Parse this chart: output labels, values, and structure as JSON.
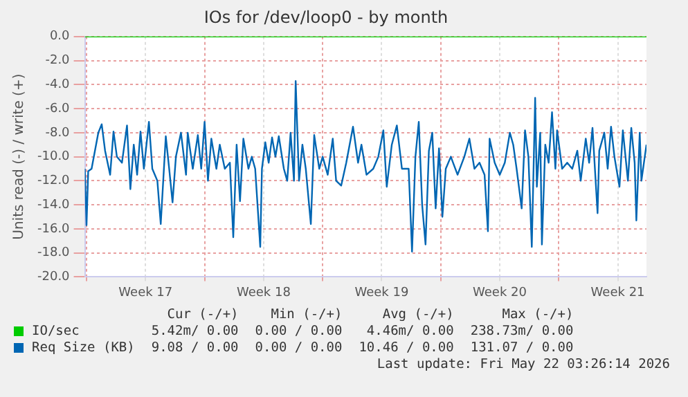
{
  "chart_data": {
    "type": "line",
    "title": "IOs for /dev/loop0 - by month",
    "ylabel": "Units read (-) / write (+)",
    "xlim": [
      "2026-04-19T21:36",
      "2026-05-23T04:48"
    ],
    "xticks": [
      {
        "value": "2026-04-20",
        "label": null
      },
      {
        "value": "2026-04-23T12:00",
        "label": "Week 17"
      },
      {
        "value": "2026-04-27",
        "label": null
      },
      {
        "value": "2026-04-30T12:00",
        "label": "Week 18"
      },
      {
        "value": "2026-05-04",
        "label": null
      },
      {
        "value": "2026-05-07T12:00",
        "label": "Week 19"
      },
      {
        "value": "2026-05-11",
        "label": null
      },
      {
        "value": "2026-05-14T12:00",
        "label": "Week 20"
      },
      {
        "value": "2026-05-18",
        "label": null
      },
      {
        "value": "2026-05-21T12:00",
        "label": "Week 21"
      }
    ],
    "ylim": [
      -20,
      0
    ],
    "yticks": [
      {
        "value": -20,
        "label": "-20.0"
      },
      {
        "value": -18,
        "label": "-18.0"
      },
      {
        "value": -16,
        "label": "-16.0"
      },
      {
        "value": -14,
        "label": "-14.0"
      },
      {
        "value": -12,
        "label": "-12.0"
      },
      {
        "value": -10,
        "label": "-10.0"
      },
      {
        "value": -8,
        "label": "-8.0"
      },
      {
        "value": -6,
        "label": "-6.0"
      },
      {
        "value": -4,
        "label": "-4.0"
      },
      {
        "value": -2,
        "label": "-2.0"
      },
      {
        "value": 0,
        "label": "0.0"
      }
    ],
    "grid": true,
    "legend": "bottom",
    "marker": "none",
    "line_style": "solid",
    "series": [
      {
        "name": "IO/sec",
        "color": "#00cc00",
        "x": [
          "2026-04-19T21:36",
          "2026-05-23T04:48"
        ],
        "values": [
          0,
          0
        ]
      },
      {
        "name": "Req Size (KB)",
        "color": "#0066b3",
        "x": [
          "2026-04-19T21:36",
          "2026-04-20T00:00",
          "2026-04-20T02:24",
          "2026-04-20T07:12",
          "2026-04-20T16:48",
          "2026-04-20T21:36",
          "2026-04-21T02:24",
          "2026-04-21T09:36",
          "2026-04-21T14:24",
          "2026-04-21T19:12",
          "2026-04-22T02:24",
          "2026-04-22T09:36",
          "2026-04-22T14:24",
          "2026-04-22T19:12",
          "2026-04-23T00:00",
          "2026-04-23T04:48",
          "2026-04-23T09:36",
          "2026-04-23T16:48",
          "2026-04-23T21:36",
          "2026-04-24T04:48",
          "2026-04-24T09:36",
          "2026-04-24T16:48",
          "2026-04-24T21:36",
          "2026-04-25T02:24",
          "2026-04-25T07:12",
          "2026-04-25T14:24",
          "2026-04-25T21:36",
          "2026-04-26T00:00",
          "2026-04-26T07:12",
          "2026-04-26T14:24",
          "2026-04-26T19:12",
          "2026-04-27T00:00",
          "2026-04-27T04:48",
          "2026-04-27T09:36",
          "2026-04-27T16:48",
          "2026-04-27T21:36",
          "2026-04-28T04:48",
          "2026-04-28T12:00",
          "2026-04-28T16:48",
          "2026-04-28T21:36",
          "2026-04-29T02:24",
          "2026-04-29T07:12",
          "2026-04-29T14:24",
          "2026-04-29T19:12",
          "2026-04-30T00:00",
          "2026-04-30T07:12",
          "2026-04-30T09:36",
          "2026-04-30T14:24",
          "2026-04-30T19:12",
          "2026-05-01T00:00",
          "2026-05-01T04:48",
          "2026-05-01T09:36",
          "2026-05-01T16:48",
          "2026-05-01T21:36",
          "2026-05-02T02:24",
          "2026-05-02T07:12",
          "2026-05-02T09:36",
          "2026-05-02T14:24",
          "2026-05-02T19:12",
          "2026-05-03T00:00",
          "2026-05-03T07:12",
          "2026-05-03T12:00",
          "2026-05-03T19:12",
          "2026-05-04T00:00",
          "2026-05-04T07:12",
          "2026-05-04T14:24",
          "2026-05-04T19:12",
          "2026-05-05T02:24",
          "2026-05-05T09:36",
          "2026-05-05T19:12",
          "2026-05-06T02:24",
          "2026-05-06T07:12",
          "2026-05-06T14:24",
          "2026-05-07T00:00",
          "2026-05-07T07:12",
          "2026-05-07T14:24",
          "2026-05-07T19:12",
          "2026-05-08T02:24",
          "2026-05-08T09:36",
          "2026-05-08T16:48",
          "2026-05-09T02:24",
          "2026-05-09T07:12",
          "2026-05-09T12:00",
          "2026-05-09T16:48",
          "2026-05-09T21:36",
          "2026-05-10T02:24",
          "2026-05-10T07:12",
          "2026-05-10T12:00",
          "2026-05-10T16:48",
          "2026-05-10T21:36",
          "2026-05-11T02:24",
          "2026-05-11T07:12",
          "2026-05-11T14:24",
          "2026-05-12T00:00",
          "2026-05-12T09:36",
          "2026-05-12T16:48",
          "2026-05-13T00:00",
          "2026-05-13T07:12",
          "2026-05-13T14:24",
          "2026-05-13T19:12",
          "2026-05-13T21:36",
          "2026-05-14T04:48",
          "2026-05-14T12:00",
          "2026-05-14T19:12",
          "2026-05-15T02:24",
          "2026-05-15T07:12",
          "2026-05-15T12:00",
          "2026-05-15T19:12",
          "2026-05-16T00:00",
          "2026-05-16T04:48",
          "2026-05-16T09:36",
          "2026-05-16T14:24",
          "2026-05-16T16:48",
          "2026-05-16T21:36",
          "2026-05-17T00:00",
          "2026-05-17T04:48",
          "2026-05-17T09:36",
          "2026-05-17T14:24",
          "2026-05-17T19:12",
          "2026-05-17T21:36",
          "2026-05-18T04:48",
          "2026-05-18T12:00",
          "2026-05-18T19:12",
          "2026-05-19T02:24",
          "2026-05-19T07:12",
          "2026-05-19T14:24",
          "2026-05-19T19:12",
          "2026-05-20T00:00",
          "2026-05-20T07:12",
          "2026-05-20T09:36",
          "2026-05-20T16:48",
          "2026-05-20T21:36",
          "2026-05-21T02:24",
          "2026-05-21T07:12",
          "2026-05-21T14:24",
          "2026-05-21T19:12",
          "2026-05-22T02:24",
          "2026-05-22T07:12",
          "2026-05-22T12:00",
          "2026-05-22T14:24",
          "2026-05-22T19:12",
          "2026-05-22T21:36",
          "2026-05-23T04:48"
        ],
        "values": [
          -11,
          -15.7,
          -11.2,
          -11,
          -8,
          -7.3,
          -9.5,
          -11.5,
          -7.9,
          -10,
          -10.5,
          -7.4,
          -12.7,
          -9,
          -11.5,
          -7.9,
          -11,
          -7.1,
          -11,
          -12,
          -15.6,
          -8.3,
          -11,
          -13.8,
          -10,
          -8,
          -11.5,
          -8,
          -11,
          -8.2,
          -11,
          -7.1,
          -12,
          -8.5,
          -11,
          -9,
          -11,
          -10.5,
          -16.7,
          -9,
          -13.7,
          -8.5,
          -11,
          -10,
          -11,
          -17.5,
          -11,
          -8.8,
          -10.5,
          -8.4,
          -10,
          -8.3,
          -11,
          -12,
          -8,
          -12,
          -3.7,
          -12,
          -9,
          -11,
          -15.6,
          -8.2,
          -11,
          -10,
          -11.5,
          -8.5,
          -12,
          -12.4,
          -10.5,
          -7.5,
          -10.5,
          -9,
          -11.5,
          -11,
          -10,
          -7.8,
          -12.5,
          -9,
          -7.4,
          -11,
          -11,
          -17.9,
          -10,
          -7.1,
          -14,
          -17.3,
          -9.5,
          -8,
          -14.3,
          -9.3,
          -15,
          -11,
          -10,
          -11.5,
          -10,
          -8.5,
          -11,
          -10.5,
          -11.5,
          -16.2,
          -8.5,
          -10.5,
          -11.5,
          -10.5,
          -8,
          -9,
          -11,
          -14.3,
          -7.8,
          -10,
          -17.5,
          -5.1,
          -12.5,
          -8,
          -17.3,
          -9,
          -10.5,
          -6.3,
          -11,
          -7.8,
          -11,
          -10.5,
          -11,
          -9.5,
          -12,
          -8.5,
          -10.5,
          -7.6,
          -14.7,
          -9.5,
          -8,
          -11,
          -7.5,
          -10,
          -12.5,
          -7.8,
          -12,
          -7.6,
          -10.5,
          -15.3,
          -8,
          -12,
          -9
        ]
      }
    ],
    "annotations": [
      "Cur (-/+)",
      "Min (-/+)",
      "Avg (-/+)",
      "Max (-/+)",
      "5.42m/ 0.00",
      "0.00 / 0.00",
      "4.46m/ 0.00",
      "238.73m/ 0.00",
      "9.08 / 0.00",
      "0.00 / 0.00",
      "10.46 / 0.00",
      "131.07 / 0.00",
      "Last update: Fri May 22 03:26:14 2026"
    ]
  }
}
